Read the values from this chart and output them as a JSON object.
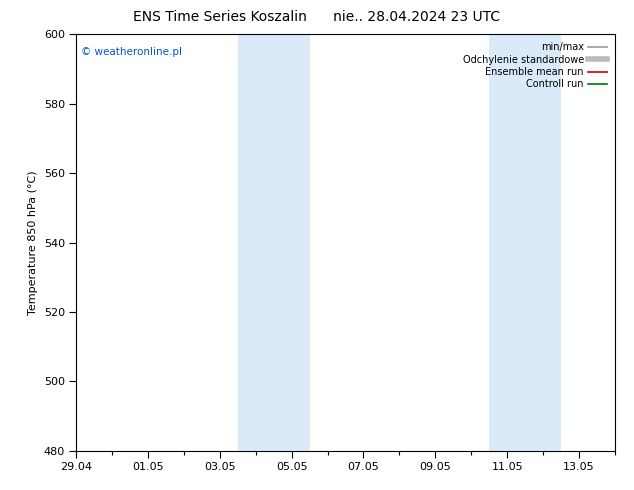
{
  "title": "ENS Time Series Koszalin      nie.. 28.04.2024 23 UTC",
  "ylabel": "Temperature 850 hPa (°C)",
  "ylim": [
    480,
    600
  ],
  "yticks": [
    480,
    500,
    520,
    540,
    560,
    580,
    600
  ],
  "xlim": [
    0,
    15
  ],
  "xtick_positions": [
    0,
    2,
    4,
    6,
    8,
    10,
    12,
    14
  ],
  "xtick_labels": [
    "29.04",
    "01.05",
    "03.05",
    "05.05",
    "07.05",
    "09.05",
    "11.05",
    "13.05"
  ],
  "blue_bands": [
    {
      "start": 4.5,
      "end": 6.5
    },
    {
      "start": 11.5,
      "end": 13.5
    }
  ],
  "watermark_text": "© weatheronline.pl",
  "watermark_color": "#0055cc",
  "legend_items": [
    {
      "label": "min/max",
      "color": "#999999",
      "lw": 1.2
    },
    {
      "label": "Odchylenie standardowe",
      "color": "#bbbbbb",
      "lw": 4
    },
    {
      "label": "Ensemble mean run",
      "color": "#cc0000",
      "lw": 1.2
    },
    {
      "label": "Controll run",
      "color": "#007700",
      "lw": 1.2
    }
  ],
  "bg_color": "#ffffff",
  "band_color": "#daeaf8",
  "title_fontsize": 10,
  "label_fontsize": 8,
  "tick_fontsize": 8,
  "legend_fontsize": 7
}
